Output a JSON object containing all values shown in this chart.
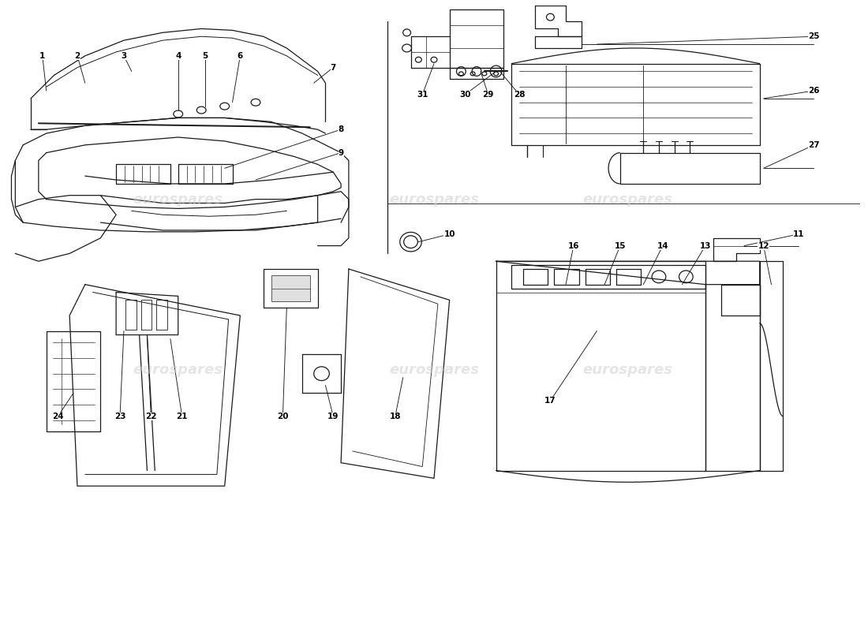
{
  "bg_color": "#ffffff",
  "line_color": "#1a1a1a",
  "watermark_text": "eurospares",
  "watermark_color": "#cccccc",
  "fig_width": 11.0,
  "fig_height": 8.0,
  "dpi": 100
}
